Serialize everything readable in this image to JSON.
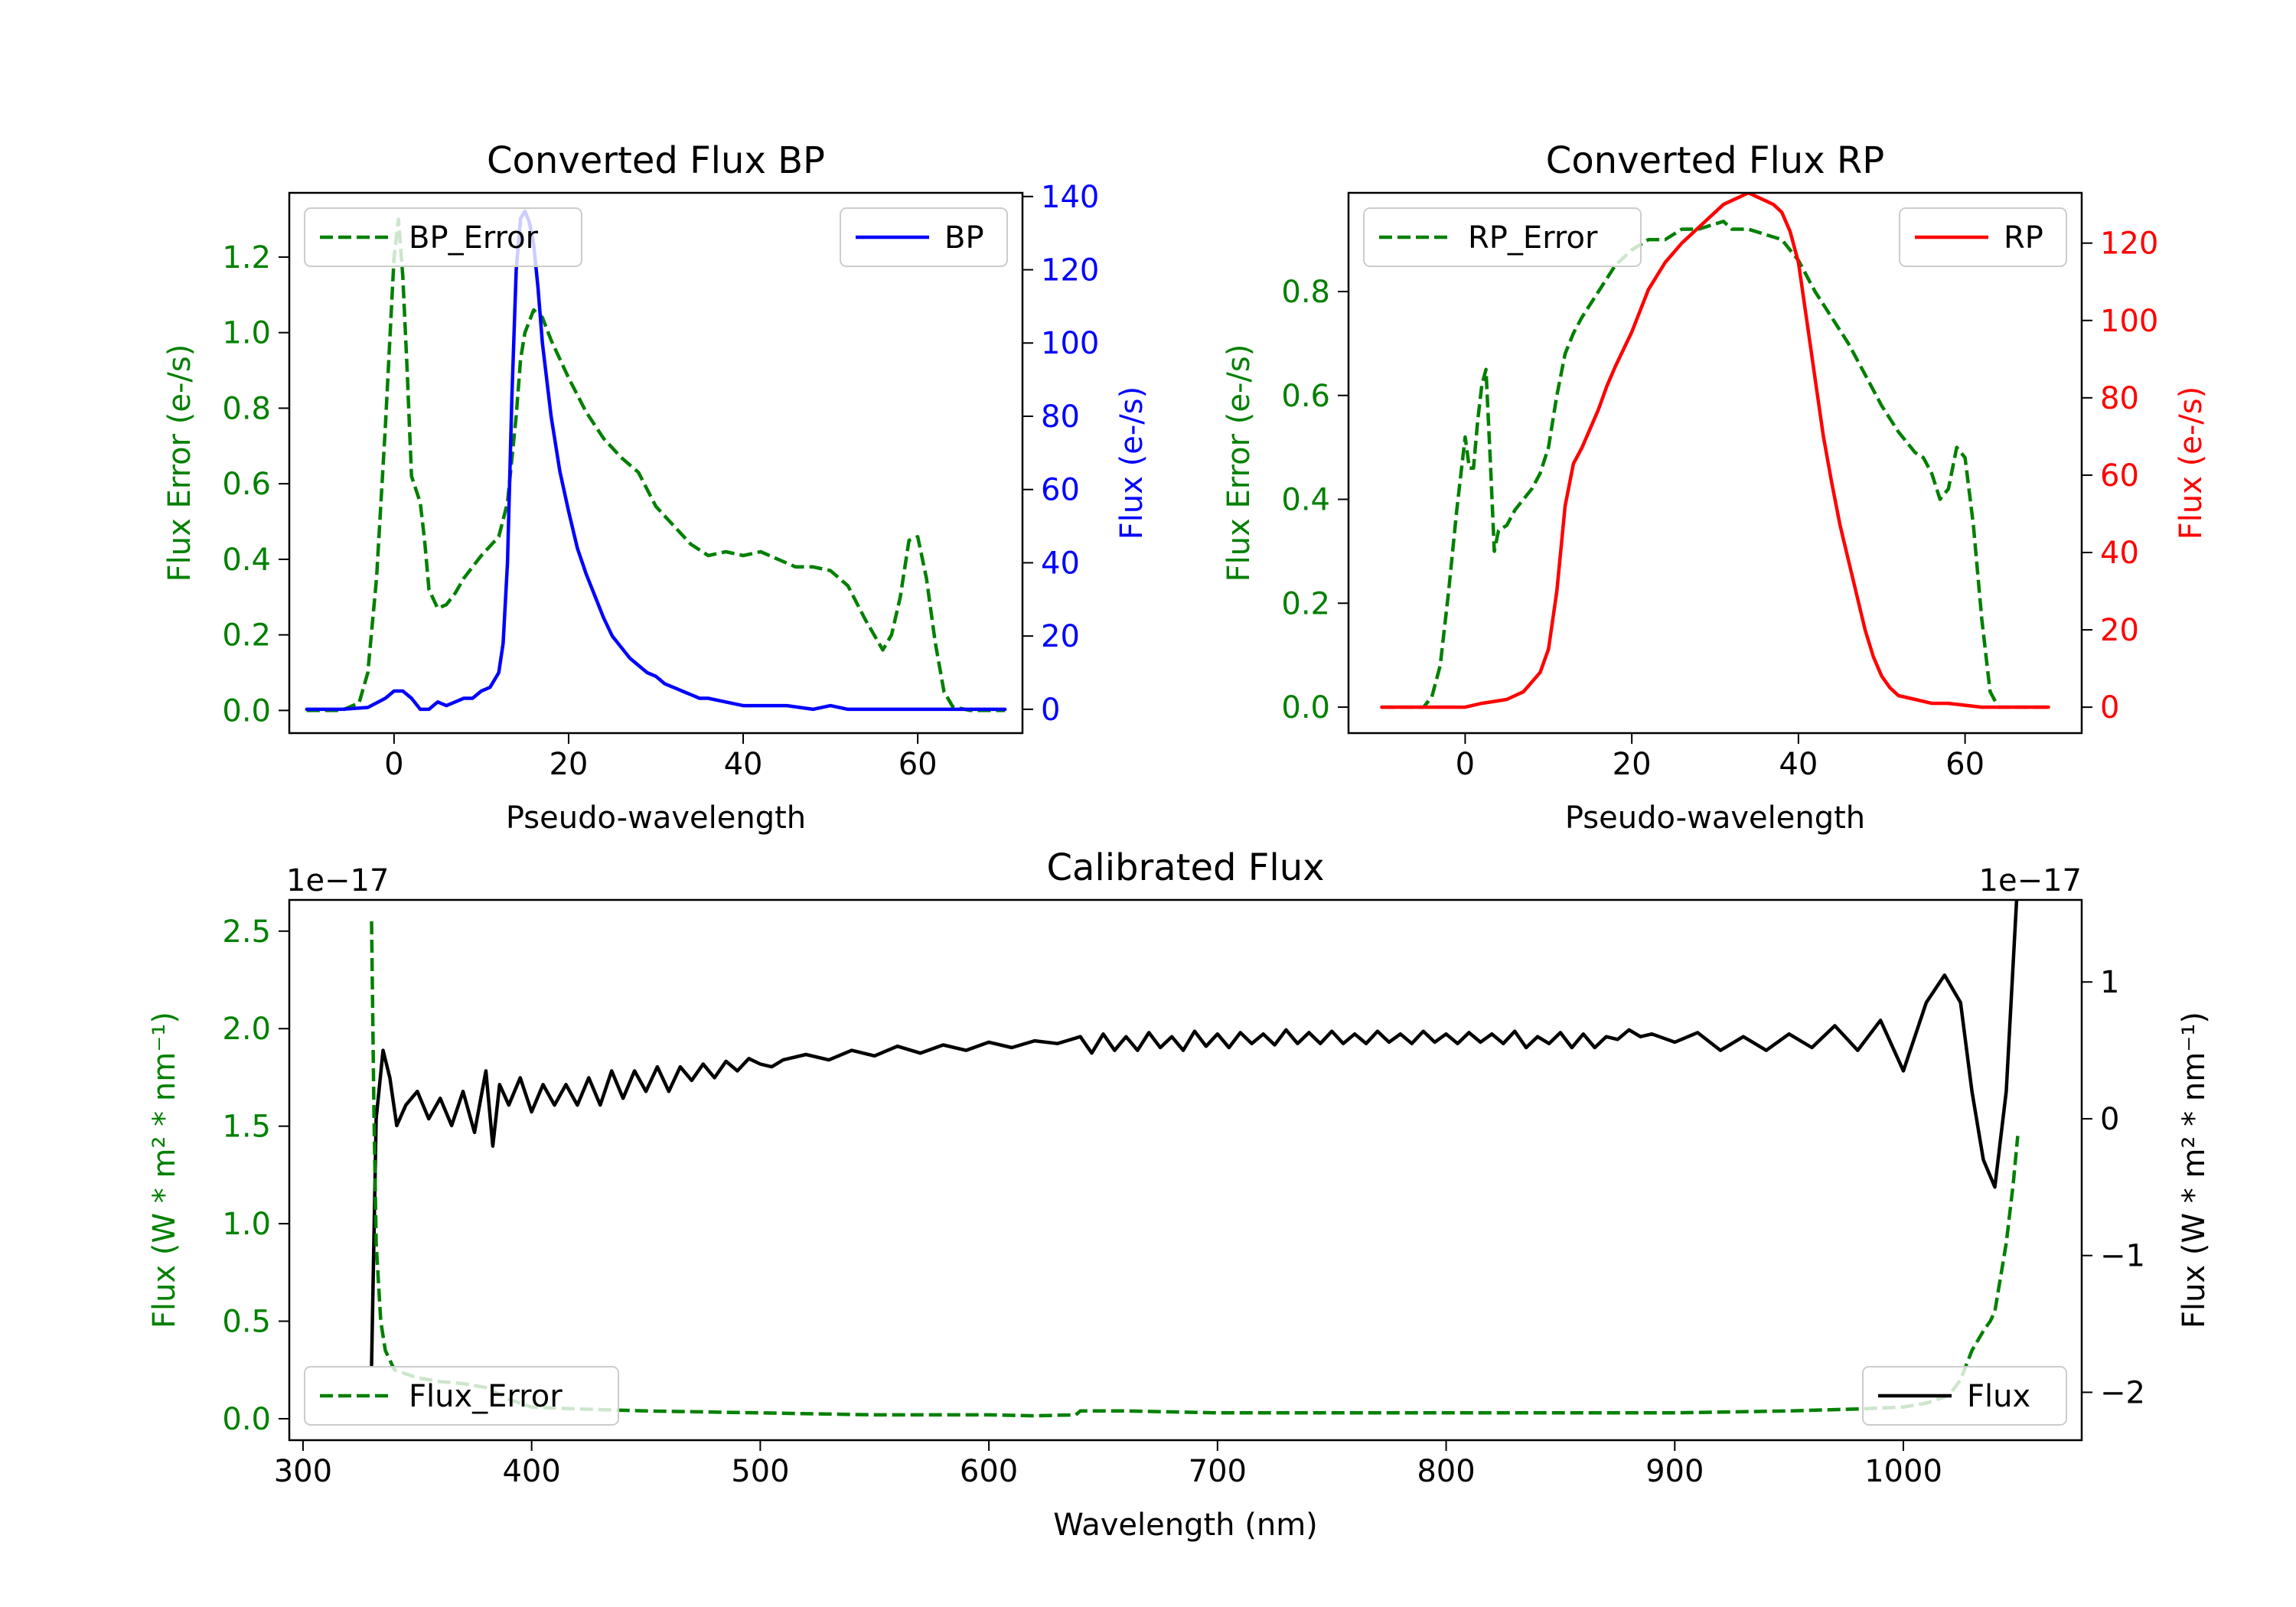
{
  "colors": {
    "error_green": "#008000",
    "bp_blue": "#0000ff",
    "rp_red": "#ff0000",
    "flux_black": "#000000"
  },
  "chart_data": [
    {
      "id": "bp",
      "type": "line",
      "title": "Converted Flux BP",
      "xlabel": "Pseudo-wavelength",
      "ylabel_left": "Flux Error (e-/s)",
      "ylabel_right": "Flux (e-/s)",
      "xlim": [
        -12,
        72
      ],
      "ylim_left": [
        -0.06,
        1.37
      ],
      "ylim_right": [
        -6.5,
        141
      ],
      "xticks": [
        0,
        20,
        40,
        60
      ],
      "xtick_labels": [
        "0",
        "20",
        "40",
        "60"
      ],
      "yticks_left": [
        0.0,
        0.2,
        0.4,
        0.6,
        0.8,
        1.0,
        1.2
      ],
      "ytick_labels_left": [
        "0.0",
        "0.2",
        "0.4",
        "0.6",
        "0.8",
        "1.0",
        "1.2"
      ],
      "yticks_right": [
        0,
        20,
        40,
        60,
        80,
        100,
        120,
        140
      ],
      "ytick_labels_right": [
        "0",
        "20",
        "40",
        "60",
        "80",
        "100",
        "120",
        "140"
      ],
      "legend_left_position": "upper-left",
      "legend_right_position": "upper-right",
      "series": [
        {
          "name": "BP_Error",
          "axis": "left",
          "style": "dashed",
          "color": "#008000",
          "x": [
            -10,
            -6,
            -4,
            -3,
            -2,
            -1,
            0,
            0.5,
            1,
            1.5,
            2,
            3,
            3.5,
            4,
            5,
            6,
            7,
            8,
            9,
            10,
            12,
            13,
            14,
            14.5,
            15,
            16,
            17,
            18,
            19,
            20,
            22,
            24,
            26,
            28,
            30,
            32,
            34,
            36,
            38,
            40,
            42,
            44,
            46,
            48,
            50,
            52,
            54,
            55,
            56,
            57,
            58,
            59,
            60,
            61,
            62,
            63,
            64,
            66,
            70
          ],
          "values": [
            0.0,
            0.0,
            0.02,
            0.1,
            0.35,
            0.75,
            1.2,
            1.3,
            1.15,
            0.9,
            0.62,
            0.55,
            0.45,
            0.32,
            0.27,
            0.28,
            0.31,
            0.35,
            0.38,
            0.41,
            0.46,
            0.55,
            0.78,
            0.93,
            1.0,
            1.06,
            1.04,
            0.98,
            0.93,
            0.88,
            0.79,
            0.72,
            0.67,
            0.63,
            0.54,
            0.49,
            0.44,
            0.41,
            0.42,
            0.41,
            0.42,
            0.4,
            0.38,
            0.38,
            0.37,
            0.33,
            0.24,
            0.2,
            0.16,
            0.2,
            0.3,
            0.45,
            0.46,
            0.35,
            0.18,
            0.05,
            0.01,
            0.0,
            0.0
          ]
        },
        {
          "name": "BP",
          "axis": "right",
          "style": "solid",
          "color": "#0000ff",
          "x": [
            -10,
            -6,
            -3,
            -1,
            0,
            1,
            2,
            3,
            4,
            5,
            6,
            7,
            8,
            9,
            10,
            11,
            12,
            12.5,
            13,
            13.5,
            14,
            14.5,
            15,
            15.5,
            16,
            16.5,
            17,
            18,
            19,
            20,
            21,
            22,
            23,
            24,
            25,
            26,
            27,
            28,
            29,
            30,
            31,
            32,
            33,
            34,
            35,
            36,
            38,
            40,
            42,
            45,
            48,
            50,
            52,
            55,
            58,
            60,
            65,
            70
          ],
          "values": [
            0,
            0,
            0.5,
            3,
            5,
            5,
            3,
            0,
            0,
            2,
            1,
            2,
            3,
            3,
            5,
            6,
            10,
            18,
            40,
            85,
            120,
            134,
            136,
            133,
            127,
            115,
            100,
            80,
            65,
            54,
            44,
            37,
            31,
            25,
            20,
            17,
            14,
            12,
            10,
            9,
            7,
            6,
            5,
            4,
            3,
            3,
            2,
            1,
            1,
            1,
            0,
            1,
            0,
            0,
            0,
            0,
            0,
            0
          ]
        }
      ]
    },
    {
      "id": "rp",
      "type": "line",
      "title": "Converted Flux RP",
      "xlabel": "Pseudo-wavelength",
      "ylabel_left": "Flux Error (e-/s)",
      "ylabel_right": "Flux (e-/s)",
      "xlim": [
        -14,
        74
      ],
      "ylim_left": [
        -0.05,
        0.99
      ],
      "ylim_right": [
        -6.7,
        133
      ],
      "xticks": [
        0,
        20,
        40,
        60
      ],
      "xtick_labels": [
        "0",
        "20",
        "40",
        "60"
      ],
      "yticks_left": [
        0.0,
        0.2,
        0.4,
        0.6,
        0.8
      ],
      "ytick_labels_left": [
        "0.0",
        "0.2",
        "0.4",
        "0.6",
        "0.8"
      ],
      "yticks_right": [
        0,
        20,
        40,
        60,
        80,
        100,
        120
      ],
      "ytick_labels_right": [
        "0",
        "20",
        "40",
        "60",
        "80",
        "100",
        "120"
      ],
      "legend_left_position": "upper-left",
      "legend_right_position": "upper-right",
      "series": [
        {
          "name": "RP_Error",
          "axis": "left",
          "style": "dashed",
          "color": "#008000",
          "x": [
            -10,
            -5,
            -4,
            -3,
            -2,
            -1,
            0,
            0.5,
            1,
            1.5,
            2,
            2.5,
            3,
            3.5,
            4,
            5,
            6,
            7,
            8,
            9,
            10,
            11,
            12,
            13,
            14,
            16,
            18,
            20,
            22,
            24,
            26,
            28,
            30,
            31,
            32,
            34,
            36,
            38,
            40,
            42,
            44,
            46,
            48,
            50,
            52,
            54,
            55,
            56,
            57,
            58,
            59,
            60,
            61,
            62,
            63,
            64,
            66,
            70
          ],
          "values": [
            0.0,
            0.0,
            0.02,
            0.08,
            0.22,
            0.38,
            0.52,
            0.46,
            0.46,
            0.55,
            0.62,
            0.65,
            0.48,
            0.3,
            0.34,
            0.35,
            0.38,
            0.4,
            0.42,
            0.45,
            0.5,
            0.6,
            0.68,
            0.72,
            0.75,
            0.8,
            0.85,
            0.88,
            0.9,
            0.9,
            0.92,
            0.92,
            0.93,
            0.935,
            0.92,
            0.92,
            0.91,
            0.9,
            0.86,
            0.8,
            0.75,
            0.7,
            0.64,
            0.58,
            0.53,
            0.49,
            0.48,
            0.45,
            0.4,
            0.42,
            0.5,
            0.48,
            0.35,
            0.17,
            0.03,
            0.0,
            0.0,
            0.0
          ]
        },
        {
          "name": "RP",
          "axis": "right",
          "style": "solid",
          "color": "#ff0000",
          "x": [
            -10,
            -5,
            0,
            2,
            5,
            7,
            9,
            10,
            11,
            12,
            13,
            14,
            15,
            16,
            17,
            18,
            20,
            22,
            24,
            26,
            28,
            30,
            31,
            32,
            33,
            34,
            35,
            36,
            37,
            38,
            39,
            40,
            41,
            42,
            43,
            44,
            45,
            46,
            47,
            48,
            49,
            50,
            51,
            52,
            54,
            56,
            58,
            60,
            62,
            65,
            70
          ],
          "values": [
            0,
            0,
            0,
            1,
            2,
            4,
            9,
            15,
            30,
            52,
            63,
            67,
            72,
            77,
            83,
            88,
            97,
            108,
            115,
            120,
            124,
            128,
            130,
            131,
            132,
            133,
            132,
            131,
            130,
            128,
            123,
            115,
            100,
            85,
            70,
            58,
            47,
            38,
            29,
            20,
            13,
            8,
            5,
            3,
            2,
            1,
            1,
            0.5,
            0,
            0,
            0
          ]
        }
      ]
    },
    {
      "id": "calibrated",
      "type": "line",
      "title": "Calibrated Flux",
      "xlabel": "Wavelength (nm)",
      "ylabel_left": "Flux (W * m² * nm⁻¹)",
      "ylabel_right": "Flux (W * m² * nm⁻¹)",
      "scale_left": "1e−17",
      "scale_right": "1e−17",
      "xlim": [
        294,
        1078
      ],
      "ylim_left": [
        -0.11,
        2.66
      ],
      "ylim_right": [
        -2.35,
        1.6
      ],
      "xticks": [
        300,
        400,
        500,
        600,
        700,
        800,
        900,
        1000
      ],
      "xtick_labels": [
        "300",
        "400",
        "500",
        "600",
        "700",
        "800",
        "900",
        "1000"
      ],
      "yticks_left": [
        0.0,
        0.5,
        1.0,
        1.5,
        2.0,
        2.5
      ],
      "ytick_labels_left": [
        "0.0",
        "0.5",
        "1.0",
        "1.5",
        "2.0",
        "2.5"
      ],
      "yticks_right": [
        -2,
        -1,
        0,
        1
      ],
      "ytick_labels_right": [
        "−2",
        "−1",
        "0",
        "1"
      ],
      "legend_left_position": "lower-left",
      "legend_right_position": "lower-right",
      "series": [
        {
          "name": "Flux",
          "axis": "right",
          "style": "solid",
          "color": "#000000",
          "x": [
            330,
            332,
            335,
            338,
            341,
            345,
            350,
            355,
            360,
            365,
            370,
            375,
            380,
            383,
            386,
            390,
            395,
            400,
            405,
            410,
            415,
            420,
            425,
            430,
            435,
            440,
            445,
            450,
            455,
            460,
            465,
            470,
            475,
            480,
            485,
            490,
            495,
            500,
            505,
            510,
            520,
            530,
            540,
            550,
            560,
            570,
            580,
            590,
            600,
            610,
            620,
            630,
            640,
            645,
            650,
            655,
            660,
            665,
            670,
            675,
            680,
            685,
            690,
            695,
            700,
            705,
            710,
            715,
            720,
            725,
            730,
            735,
            740,
            745,
            750,
            755,
            760,
            765,
            770,
            775,
            780,
            785,
            790,
            795,
            800,
            805,
            810,
            815,
            820,
            825,
            830,
            835,
            840,
            845,
            850,
            855,
            860,
            865,
            870,
            875,
            880,
            885,
            890,
            900,
            910,
            920,
            930,
            940,
            950,
            960,
            970,
            980,
            990,
            1000,
            1010,
            1018,
            1025,
            1030,
            1035,
            1040,
            1045,
            1050
          ],
          "values": [
            -1.8,
            0.0,
            0.5,
            0.3,
            -0.05,
            0.1,
            0.2,
            0.0,
            0.15,
            -0.05,
            0.2,
            -0.1,
            0.35,
            -0.2,
            0.25,
            0.1,
            0.3,
            0.05,
            0.25,
            0.1,
            0.25,
            0.1,
            0.3,
            0.1,
            0.35,
            0.15,
            0.35,
            0.2,
            0.38,
            0.2,
            0.38,
            0.28,
            0.4,
            0.3,
            0.42,
            0.35,
            0.44,
            0.4,
            0.38,
            0.43,
            0.47,
            0.43,
            0.5,
            0.46,
            0.53,
            0.48,
            0.54,
            0.5,
            0.56,
            0.52,
            0.57,
            0.55,
            0.6,
            0.48,
            0.62,
            0.5,
            0.6,
            0.5,
            0.63,
            0.52,
            0.6,
            0.5,
            0.64,
            0.53,
            0.62,
            0.52,
            0.63,
            0.55,
            0.62,
            0.54,
            0.65,
            0.55,
            0.63,
            0.55,
            0.64,
            0.55,
            0.62,
            0.55,
            0.64,
            0.56,
            0.62,
            0.55,
            0.64,
            0.56,
            0.62,
            0.55,
            0.63,
            0.56,
            0.62,
            0.55,
            0.64,
            0.52,
            0.6,
            0.55,
            0.63,
            0.52,
            0.62,
            0.52,
            0.6,
            0.58,
            0.65,
            0.6,
            0.62,
            0.56,
            0.63,
            0.5,
            0.6,
            0.5,
            0.62,
            0.52,
            0.68,
            0.5,
            0.72,
            0.35,
            0.85,
            1.05,
            0.85,
            0.2,
            -0.3,
            -0.5,
            0.2,
            1.75
          ]
        },
        {
          "name": "Flux_Error",
          "axis": "left",
          "style": "dashed",
          "color": "#008000",
          "x": [
            330,
            331,
            332,
            334,
            336,
            340,
            350,
            360,
            370,
            380,
            390,
            400,
            420,
            450,
            500,
            550,
            600,
            620,
            638,
            640,
            660,
            700,
            800,
            900,
            950,
            980,
            1000,
            1010,
            1020,
            1025,
            1030,
            1035,
            1038,
            1040,
            1045,
            1048,
            1050
          ],
          "values": [
            2.55,
            1.6,
            0.9,
            0.5,
            0.35,
            0.25,
            0.21,
            0.19,
            0.18,
            0.16,
            0.1,
            0.06,
            0.05,
            0.04,
            0.03,
            0.02,
            0.02,
            0.015,
            0.02,
            0.04,
            0.04,
            0.03,
            0.03,
            0.03,
            0.04,
            0.05,
            0.06,
            0.08,
            0.12,
            0.2,
            0.35,
            0.45,
            0.5,
            0.55,
            0.9,
            1.2,
            1.45
          ]
        }
      ]
    }
  ]
}
